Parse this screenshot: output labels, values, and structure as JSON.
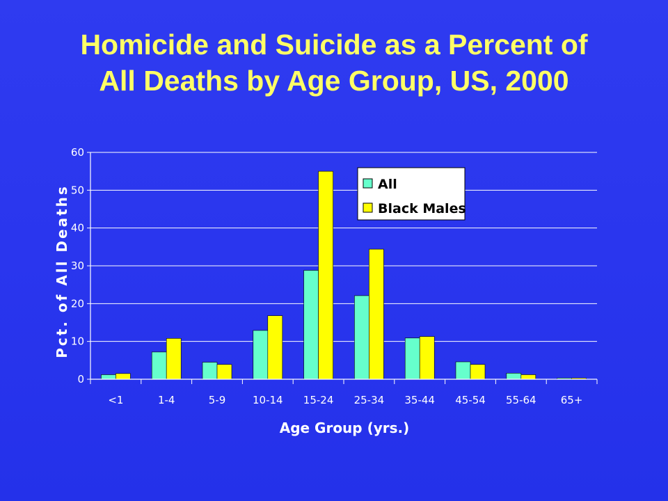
{
  "title": {
    "line1": "Homicide and Suicide as a Percent of",
    "line2": "All Deaths by Age Group, US, 2000"
  },
  "colors": {
    "background": "#2f3bf0",
    "title": "#ffff66",
    "series_all": "#66ffcc",
    "series_black_males": "#ffff00",
    "axis_text": "#ffffff",
    "legend_box": "#ffffff"
  },
  "chart_data": {
    "type": "bar",
    "categories": [
      "<1",
      "1-4",
      "5-9",
      "10-14",
      "15-24",
      "25-34",
      "35-44",
      "45-54",
      "55-64",
      "65+"
    ],
    "series": [
      {
        "name": "All",
        "color": "#66ffcc",
        "values": [
          1.2,
          7.2,
          4.5,
          12.9,
          28.8,
          22.1,
          10.9,
          4.6,
          1.6,
          0.3
        ]
      },
      {
        "name": "Black Males",
        "color": "#ffff00",
        "values": [
          1.5,
          10.8,
          3.9,
          16.8,
          55.0,
          34.4,
          11.3,
          3.9,
          1.2,
          0.3
        ]
      }
    ],
    "xlabel": "Age Group (yrs.)",
    "ylabel": "Pct. of All Deaths",
    "ylim": [
      0,
      60
    ],
    "yticks": [
      0,
      10,
      20,
      30,
      40,
      50,
      60
    ],
    "grid": true,
    "legend_position": "top-right"
  }
}
